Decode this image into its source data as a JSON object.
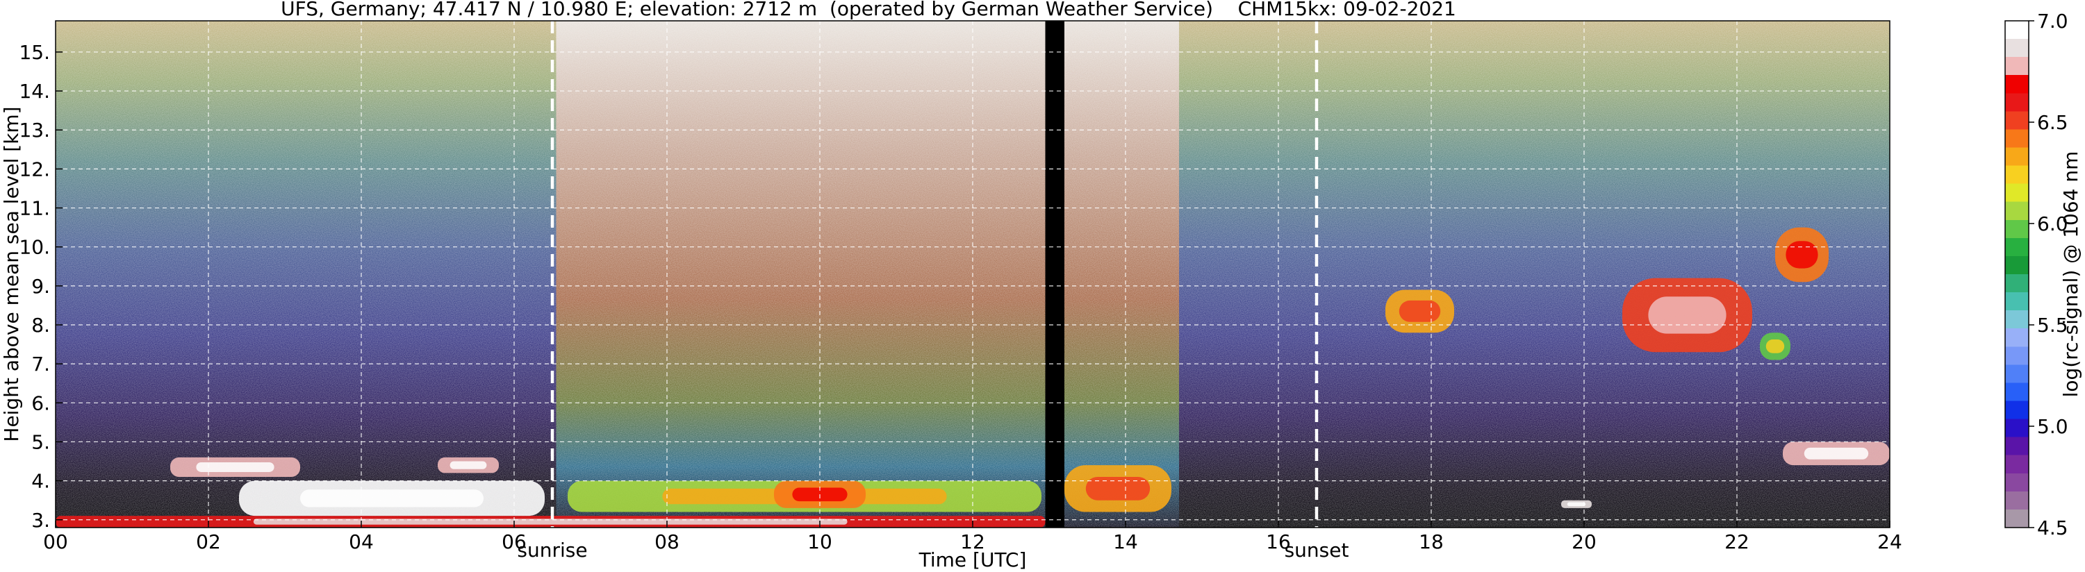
{
  "chart_data": {
    "type": "heatmap",
    "title": "UFS, Germany; 47.417 N / 10.980 E; elevation: 2712 m  (operated by German Weather Service)    CHM15kx: 09-02-2021",
    "xlabel": "Time [UTC]",
    "ylabel": "Height above mean sea level [km]",
    "xlim": [
      0,
      24
    ],
    "ylim": [
      2.8,
      15.8
    ],
    "x_ticks": [
      0,
      2,
      4,
      6,
      8,
      10,
      12,
      14,
      16,
      18,
      20,
      22,
      24
    ],
    "x_tick_labels": [
      "00",
      "02",
      "04",
      "06",
      "08",
      "10",
      "12",
      "14",
      "16",
      "18",
      "20",
      "22",
      "24"
    ],
    "y_ticks": [
      3,
      4,
      5,
      6,
      7,
      8,
      9,
      10,
      11,
      12,
      13,
      14,
      15
    ],
    "y_tick_labels": [
      "3.",
      "4.",
      "5.",
      "6.",
      "7.",
      "8.",
      "9.",
      "10.",
      "11.",
      "12.",
      "13.",
      "14.",
      "15."
    ],
    "grid": true,
    "events": [
      {
        "label": "sunrise",
        "time": 6.5
      },
      {
        "label": "sunset",
        "time": 16.5
      }
    ],
    "data_gap": [
      12.95,
      13.2
    ],
    "daylight_noise": [
      [
        6.55,
        12.95
      ],
      [
        13.2,
        14.7
      ]
    ],
    "colorbar": {
      "label": "log(rc-signal) @ 1064 nm",
      "range": [
        4.5,
        7.0
      ],
      "ticks": [
        4.5,
        5.0,
        5.5,
        6.0,
        6.5,
        7.0
      ],
      "tick_labels": [
        "4.5",
        "5.0",
        "5.5",
        "6.0",
        "6.5",
        "7.0"
      ],
      "colors": [
        "#a898a8",
        "#9a6ea0",
        "#8a48a0",
        "#7a2aa0",
        "#5a14a8",
        "#2a10c8",
        "#1030e8",
        "#2860f8",
        "#5080f8",
        "#7898f8",
        "#98b0f8",
        "#7cc8d8",
        "#48c0b0",
        "#30b078",
        "#189a38",
        "#28b040",
        "#60c848",
        "#a8d840",
        "#e0e828",
        "#f8d020",
        "#f8a818",
        "#f87818",
        "#f04020",
        "#e81818",
        "#f00000",
        "#f0b8b8",
        "#e8e0e0",
        "#ffffff"
      ]
    },
    "features": [
      {
        "type": "boundary_layer",
        "x": [
          0,
          12.95
        ],
        "y": [
          2.8,
          3.1
        ],
        "level": 6.6
      },
      {
        "type": "cloud",
        "x": [
          2.4,
          6.4
        ],
        "y": [
          3.1,
          4.0
        ],
        "level": 7.0
      },
      {
        "type": "cloud",
        "x": [
          1.5,
          3.2
        ],
        "y": [
          4.1,
          4.6
        ],
        "level": 6.8
      },
      {
        "type": "cloud",
        "x": [
          5.0,
          5.8
        ],
        "y": [
          4.2,
          4.6
        ],
        "level": 6.8
      },
      {
        "type": "aerosol_layer",
        "x": [
          6.7,
          12.9
        ],
        "y": [
          3.2,
          4.0
        ],
        "level": 6.1
      },
      {
        "type": "aerosol_layer",
        "x": [
          9.4,
          10.6
        ],
        "y": [
          3.3,
          4.0
        ],
        "level": 6.4
      },
      {
        "type": "aerosol_layer",
        "x": [
          13.2,
          14.6
        ],
        "y": [
          3.2,
          4.4
        ],
        "level": 6.3
      },
      {
        "type": "cirrus",
        "x": [
          17.4,
          18.3
        ],
        "y": [
          7.8,
          8.9
        ],
        "level": 6.3
      },
      {
        "type": "cirrus",
        "x": [
          20.5,
          22.2
        ],
        "y": [
          7.3,
          9.2
        ],
        "level": 6.5
      },
      {
        "type": "cirrus",
        "x": [
          22.5,
          23.2
        ],
        "y": [
          9.1,
          10.5
        ],
        "level": 6.4
      },
      {
        "type": "cirrus",
        "x": [
          22.3,
          22.7
        ],
        "y": [
          7.1,
          7.8
        ],
        "level": 6.0
      },
      {
        "type": "cloud",
        "x": [
          22.6,
          24
        ],
        "y": [
          4.4,
          5.0
        ],
        "level": 6.8
      },
      {
        "type": "cloud",
        "x": [
          19.7,
          20.1
        ],
        "y": [
          3.3,
          3.5
        ],
        "level": 6.9
      }
    ]
  }
}
